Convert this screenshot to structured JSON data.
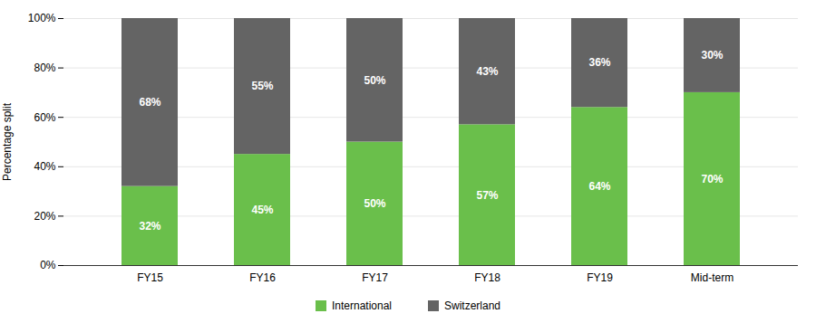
{
  "chart_data": {
    "type": "bar",
    "stacked": true,
    "ylabel": "Percentage split",
    "categories": [
      "FY15",
      "FY16",
      "FY17",
      "FY18",
      "FY19",
      "Mid-term"
    ],
    "series": [
      {
        "name": "International",
        "color": "#6abf4b",
        "values": [
          32,
          45,
          50,
          57,
          64,
          70
        ],
        "value_labels": [
          "32%",
          "45%",
          "50%",
          "57%",
          "64%",
          "70%"
        ]
      },
      {
        "name": "Switzerland",
        "color": "#646464",
        "values": [
          68,
          55,
          50,
          43,
          36,
          30
        ],
        "value_labels": [
          "68%",
          "55%",
          "50%",
          "43%",
          "36%",
          "30%"
        ]
      }
    ],
    "ylim": [
      0,
      100
    ],
    "yticks": [
      {
        "value": 0,
        "label": "0%"
      },
      {
        "value": 20,
        "label": "20%"
      },
      {
        "value": 40,
        "label": "40%"
      },
      {
        "value": 60,
        "label": "60%"
      },
      {
        "value": 80,
        "label": "80%"
      },
      {
        "value": 100,
        "label": "100%"
      }
    ],
    "grid": true,
    "legend": "bottom",
    "data_labels": true
  }
}
